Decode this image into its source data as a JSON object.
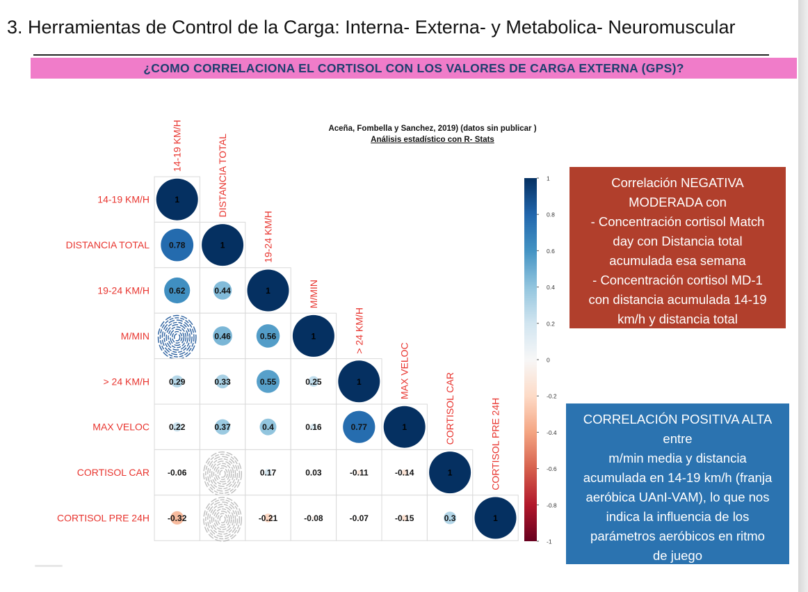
{
  "slide": {
    "title": "3. Herramientas de Control de la Carga: Interna- Externa- y Metabolica- Neuromuscular",
    "banner": "¿COMO CORRELACIONA EL CORTISOL CON LOS VALORES DE CARGA EXTERNA (GPS)?",
    "citation_line1": "Aceña, Fombella y Sanchez, 2019) (datos sin publicar )",
    "citation_line2": "Análisis estadístico con R- Stats"
  },
  "notes": {
    "negative": {
      "lines": [
        "Correlación NEGATIVA",
        "MODERADA con",
        "- Concentración cortisol Match",
        "day con Distancia total",
        "acumulada esa semana",
        "- Concentración cortisol MD-1",
        "con distancia acumulada 14-19",
        "km/h y distancia total"
      ],
      "color": "#b13f2c"
    },
    "positive": {
      "lines": [
        "CORRELACIÓN POSITIVA ALTA",
        "entre",
        "m/min media y distancia",
        "acumulada en 14-19 km/h (franja",
        "aeróbica UAnI-VAM), lo que nos",
        "indica la influencia de los",
        "parámetros aeróbicos en ritmo",
        "de juego"
      ],
      "color": "#2b73b0"
    }
  },
  "chart_data": {
    "type": "heatmap",
    "style": "corrplot-circle-lower",
    "variables": [
      "14-19 KM/H",
      "DISTANCIA TOTAL",
      "19-24 KM/H",
      "M/MIN",
      "> 24 KM/H",
      "MAX VELOC",
      "CORTISOL CAR",
      "CORTISOL PRE 24H"
    ],
    "matrix": [
      [
        1
      ],
      [
        0.78,
        1
      ],
      [
        0.62,
        0.44,
        1
      ],
      [
        null,
        0.46,
        0.56,
        1
      ],
      [
        0.29,
        0.33,
        0.55,
        0.25,
        1
      ],
      [
        0.22,
        0.37,
        0.4,
        0.16,
        0.77,
        1
      ],
      [
        -0.06,
        null,
        0.17,
        0.03,
        -0.11,
        -0.14,
        1
      ],
      [
        -0.32,
        null,
        -0.21,
        -0.08,
        -0.07,
        -0.15,
        0.3,
        1
      ]
    ],
    "colorbar": {
      "range": [
        -1,
        1
      ],
      "ticks": [
        "1",
        "0.8",
        "0.6",
        "0.4",
        "0.2",
        "0",
        "-0.2",
        "-0.4",
        "-0.6",
        "-0.8",
        "-1"
      ],
      "positive_color": "#053061",
      "neutral_color": "#f7f7f7",
      "negative_color": "#67001f"
    },
    "label_color": "#e8342e"
  }
}
